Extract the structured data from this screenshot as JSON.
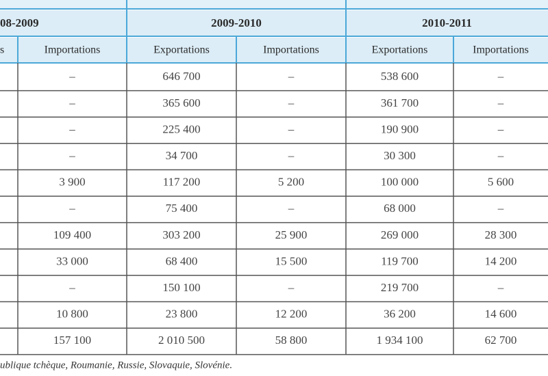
{
  "table": {
    "groups": [
      "08-2009",
      "2009-2010",
      "2010-2011"
    ],
    "subheaders": [
      "s",
      "Importations",
      "Exportations",
      "Importations",
      "Exportations",
      "Importations"
    ],
    "rows": [
      [
        "–",
        "646 700",
        "–",
        "538 600",
        "–"
      ],
      [
        "–",
        "365 600",
        "–",
        "361 700",
        "–"
      ],
      [
        "–",
        "225 400",
        "–",
        "190 900",
        "–"
      ],
      [
        "–",
        "34 700",
        "–",
        "30 300",
        "–"
      ],
      [
        "3 900",
        "117 200",
        "5 200",
        "100 000",
        "5 600"
      ],
      [
        "–",
        "75 400",
        "–",
        "68 000",
        "–"
      ],
      [
        "109 400",
        "303 200",
        "25 900",
        "269 000",
        "28 300"
      ],
      [
        "33 000",
        "68 400",
        "15 500",
        "119 700",
        "14 200"
      ],
      [
        "–",
        "150 100",
        "–",
        "219 700",
        "–"
      ],
      [
        "10 800",
        "23 800",
        "12 200",
        "36 200",
        "14 600"
      ],
      [
        "157 100",
        "2 010 500",
        "58 800",
        "1 934 100",
        "62 700"
      ]
    ]
  },
  "footnote": "ublique tchèque, Roumanie, Russie, Slovaquie, Slovénie."
}
